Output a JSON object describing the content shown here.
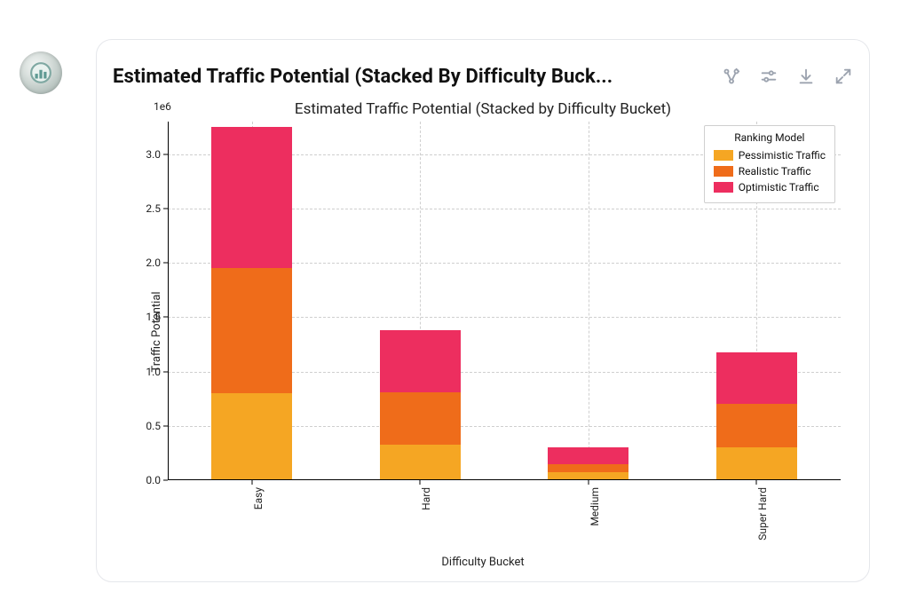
{
  "card": {
    "title": "Estimated Traffic Potential (Stacked By Difficulty Buck..."
  },
  "toolbar": {
    "icons": [
      "branch-icon",
      "settings-icon",
      "download-icon",
      "expand-icon"
    ]
  },
  "chart": {
    "type": "stacked-bar",
    "title": "Estimated Traffic Potential (Stacked by Difficulty Bucket)",
    "title_fontsize": 17,
    "xlabel": "Difficulty Bucket",
    "ylabel": "Traffic Potential",
    "label_fontsize": 13,
    "scale_hint": "1e6",
    "background_color": "#ffffff",
    "grid_color": "#cfcfcf",
    "grid_dash": "dashed",
    "axis_color": "#000000",
    "ylim": [
      0,
      3300000
    ],
    "ytick_step": 500000,
    "yticks": [
      {
        "value": 0,
        "label": "0.0"
      },
      {
        "value": 500000,
        "label": "0.5"
      },
      {
        "value": 1000000,
        "label": "1.0"
      },
      {
        "value": 1500000,
        "label": "1.5"
      },
      {
        "value": 2000000,
        "label": "2.0"
      },
      {
        "value": 2500000,
        "label": "2.5"
      },
      {
        "value": 3000000,
        "label": "3.0"
      }
    ],
    "categories": [
      "Easy",
      "Hard",
      "Medium",
      "Super Hard"
    ],
    "series": [
      {
        "name": "Pessimistic Traffic",
        "color": "#f5a623"
      },
      {
        "name": "Realistic Traffic",
        "color": "#ef6c1a"
      },
      {
        "name": "Optimistic Traffic",
        "color": "#ed2e5f"
      }
    ],
    "values": [
      [
        800000,
        1150000,
        1300000
      ],
      [
        330000,
        480000,
        570000
      ],
      [
        70000,
        80000,
        150000
      ],
      [
        300000,
        400000,
        480000
      ]
    ],
    "bar_width": 0.48,
    "legend": {
      "title": "Ranking Model",
      "position": "upper right"
    }
  }
}
